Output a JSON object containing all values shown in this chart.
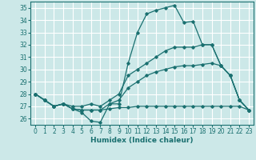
{
  "xlabel": "Humidex (Indice chaleur)",
  "background_color": "#cce8e8",
  "grid_color": "#ffffff",
  "line_color": "#1a7070",
  "xlim": [
    -0.5,
    23.5
  ],
  "ylim": [
    25.5,
    35.5
  ],
  "xticks": [
    0,
    1,
    2,
    3,
    4,
    5,
    6,
    7,
    8,
    9,
    10,
    11,
    12,
    13,
    14,
    15,
    16,
    17,
    18,
    19,
    20,
    21,
    22,
    23
  ],
  "yticks": [
    26,
    27,
    28,
    29,
    30,
    31,
    32,
    33,
    34,
    35
  ],
  "series": [
    {
      "x": [
        0,
        1,
        2,
        3,
        4,
        5,
        6,
        7,
        8,
        9,
        10,
        11,
        12,
        13,
        14,
        15,
        16,
        17,
        18,
        19,
        20,
        21,
        22,
        23
      ],
      "y": [
        28.0,
        27.5,
        27.0,
        27.2,
        26.8,
        26.5,
        25.8,
        25.7,
        27.2,
        27.2,
        30.5,
        33.0,
        34.5,
        34.8,
        35.0,
        35.2,
        33.8,
        33.9,
        32.0,
        32.0,
        30.3,
        29.5,
        27.5,
        26.7
      ]
    },
    {
      "x": [
        0,
        1,
        2,
        3,
        4,
        5,
        6,
        7,
        8,
        9,
        10,
        11,
        12,
        13,
        14,
        15,
        16,
        17,
        18,
        19,
        20,
        21,
        22,
        23
      ],
      "y": [
        28.0,
        27.5,
        27.0,
        27.2,
        26.8,
        26.7,
        26.7,
        26.7,
        26.8,
        26.9,
        26.9,
        27.0,
        27.0,
        27.0,
        27.0,
        27.0,
        27.0,
        27.0,
        27.0,
        27.0,
        27.0,
        27.0,
        27.0,
        26.7
      ]
    },
    {
      "x": [
        0,
        1,
        2,
        3,
        4,
        5,
        6,
        7,
        8,
        9,
        10,
        11,
        12,
        13,
        14,
        15,
        16,
        17,
        18,
        19,
        20,
        21,
        22,
        23
      ],
      "y": [
        28.0,
        27.5,
        27.0,
        27.2,
        26.8,
        26.7,
        26.7,
        26.7,
        27.2,
        27.5,
        28.5,
        29.0,
        29.5,
        29.8,
        30.0,
        30.2,
        30.3,
        30.3,
        30.4,
        30.5,
        30.3,
        29.5,
        27.5,
        26.7
      ]
    },
    {
      "x": [
        0,
        1,
        2,
        3,
        4,
        5,
        6,
        7,
        8,
        9,
        10,
        11,
        12,
        13,
        14,
        15,
        16,
        17,
        18,
        19,
        20,
        21,
        22,
        23
      ],
      "y": [
        28.0,
        27.5,
        27.0,
        27.2,
        27.0,
        27.0,
        27.2,
        27.0,
        27.5,
        28.0,
        29.5,
        30.0,
        30.5,
        31.0,
        31.5,
        31.8,
        31.8,
        31.8,
        32.0,
        32.0,
        30.3,
        29.5,
        27.5,
        26.7
      ]
    }
  ]
}
